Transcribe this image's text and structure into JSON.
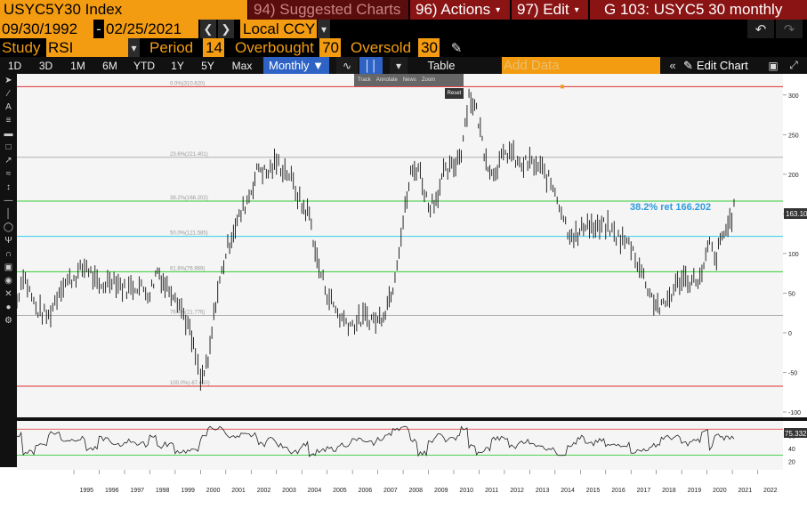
{
  "header": {
    "ticker": "USYC5Y30 Index",
    "suggested": "94) Suggested Charts",
    "actions": "96) Actions",
    "actions_caret": "▾",
    "edit": "97) Edit",
    "edit_caret": "▾",
    "title": "G 103: USYC5 30 monthly"
  },
  "daterow": {
    "start_date": "09/30/1992",
    "separator": "-",
    "end_date": "02/25/2021",
    "currency": "Local CCY"
  },
  "studyrow": {
    "study_label": "Study",
    "study_value": "RSI",
    "period_label": "Period",
    "period_value": "14",
    "overbought_label": "Overbought",
    "overbought_value": "70",
    "oversold_label": "Oversold",
    "oversold_value": "30"
  },
  "rangebar": {
    "ranges": [
      "1D",
      "3D",
      "1M",
      "6M",
      "YTD",
      "1Y",
      "5Y",
      "Max"
    ],
    "frequency": "Monthly ▼",
    "table": "Table",
    "add_data_placeholder": "Add Data",
    "edit_chart": "Edit Chart"
  },
  "annotation_toolbar": {
    "items": [
      "Track",
      "Annotate",
      "News",
      "Zoom"
    ],
    "reset": "Reset"
  },
  "main_chart": {
    "fib_levels": [
      {
        "label": "0.0%(310.620)",
        "value": 310.62,
        "color": "#e03030"
      },
      {
        "label": "23.6%(221.401)",
        "value": 221.401,
        "color": "#b0b0b0"
      },
      {
        "label": "38.2%(166.202)",
        "value": 166.202,
        "color": "#33cc33"
      },
      {
        "label": "50.0%(121.585)",
        "value": 121.585,
        "color": "#33ccee"
      },
      {
        "label": "61.8%(76.969)",
        "value": 76.969,
        "color": "#33cc33"
      },
      {
        "label": "76.4%(21.776)",
        "value": 21.776,
        "color": "#b0b0b0"
      },
      {
        "label": "100.0%(-67.450)",
        "value": -67.45,
        "color": "#e03030"
      }
    ],
    "retracement_label": "38.2% ret 166.202",
    "last_value": "163.101",
    "y_ticks": [
      300,
      250,
      200,
      150,
      100,
      50,
      0,
      -50,
      -100
    ],
    "y_tick_labels": [
      "300",
      "250",
      "200",
      "150",
      "100",
      "50",
      "0",
      "-50",
      "-100"
    ]
  },
  "rsi_panel": {
    "last_value": "75.3321",
    "y_ticks": [
      60,
      40,
      20
    ],
    "y_tick_labels": [
      "60",
      "40",
      "20"
    ],
    "overbought": 70,
    "oversold": 30
  },
  "x_axis": {
    "years": [
      "1995",
      "1996",
      "1997",
      "1998",
      "1999",
      "2000",
      "2001",
      "2002",
      "2003",
      "2004",
      "2005",
      "2006",
      "2007",
      "2008",
      "2009",
      "2010",
      "2011",
      "2012",
      "2013",
      "2014",
      "2015",
      "2016",
      "2017",
      "2018",
      "2019",
      "2020",
      "2021",
      "2022"
    ]
  },
  "chart_data": {
    "type": "line",
    "title": "",
    "xlabel": "",
    "ylabel": "",
    "x_range": [
      1992.75,
      2023.0
    ],
    "ylim": [
      -100,
      320
    ],
    "series": [
      {
        "name": "",
        "x": [
          1992.75,
          1993.0,
          1993.5,
          1994.0,
          1994.5,
          1995.0,
          1995.5,
          1996.0,
          1996.5,
          1997.0,
          1997.5,
          1998.0,
          1998.3,
          1998.6,
          1999.0,
          1999.5,
          1999.8,
          2000.0,
          2000.3,
          2000.6,
          2001.0,
          2001.3,
          2001.6,
          2002.0,
          2002.3,
          2002.6,
          2003.0,
          2003.5,
          2004.0,
          2004.3,
          2004.6,
          2005.0,
          2005.5,
          2006.0,
          2006.5,
          2007.0,
          2007.3,
          2007.6,
          2008.0,
          2008.3,
          2008.6,
          2009.0,
          2009.3,
          2009.6,
          2010.0,
          2010.3,
          2010.6,
          2010.9,
          2011.2,
          2011.5,
          2011.8,
          2012.2,
          2012.6,
          2013.0,
          2013.5,
          2014.0,
          2014.5,
          2014.9,
          2015.2,
          2015.6,
          2016.0,
          2016.5,
          2017.0,
          2017.5,
          2017.9,
          2018.2,
          2018.6,
          2019.0,
          2019.4,
          2019.8,
          2020.1,
          2020.3,
          2020.6,
          2020.9,
          2021.15
        ],
        "values": [
          40,
          75,
          30,
          20,
          60,
          70,
          85,
          55,
          70,
          55,
          60,
          50,
          80,
          60,
          50,
          10,
          -30,
          -60,
          -40,
          40,
          100,
          130,
          150,
          180,
          210,
          200,
          215,
          200,
          160,
          150,
          90,
          50,
          20,
          10,
          20,
          15,
          30,
          60,
          140,
          200,
          210,
          160,
          170,
          200,
          210,
          230,
          300,
          280,
          230,
          200,
          215,
          230,
          210,
          215,
          205,
          180,
          130,
          120,
          140,
          130,
          135,
          120,
          110,
          70,
          40,
          30,
          50,
          70,
          65,
          70,
          115,
          90,
          120,
          140,
          163.101
        ]
      }
    ]
  }
}
